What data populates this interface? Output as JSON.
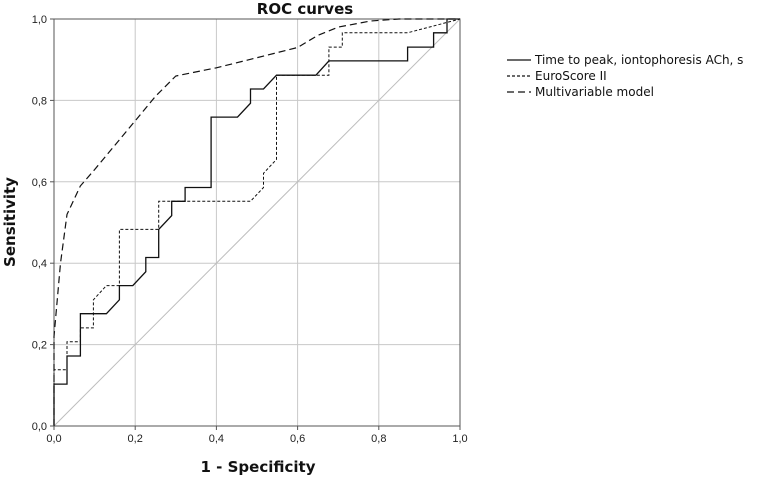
{
  "chart_data": {
    "type": "line",
    "title": "ROC curves",
    "xlabel": "1 - Specificity",
    "ylabel": "Sensitivity",
    "xlim": [
      0,
      1
    ],
    "ylim": [
      0,
      1
    ],
    "x_ticks": [
      "0,0",
      "0,2",
      "0,4",
      "0,6",
      "0,8",
      "1,0"
    ],
    "y_ticks": [
      "0,0",
      "0,2",
      "0,4",
      "0,6",
      "0,8",
      "1,0"
    ],
    "grid": true,
    "legend_position": "right",
    "series": [
      {
        "name": "Time to peak, iontophoresis ACh, s",
        "style": "solid",
        "x": [
          0,
          0,
          0.032,
          0.032,
          0.065,
          0.065,
          0.129,
          0.161,
          0.161,
          0.194,
          0.226,
          0.226,
          0.258,
          0.258,
          0.29,
          0.29,
          0.323,
          0.323,
          0.387,
          0.387,
          0.452,
          0.484,
          0.484,
          0.516,
          0.548,
          0.548,
          0.645,
          0.645,
          0.677,
          0.677,
          0.871,
          0.871,
          0.935,
          0.935,
          0.968,
          0.968,
          1
        ],
        "y": [
          0,
          0.103,
          0.103,
          0.172,
          0.172,
          0.276,
          0.276,
          0.31,
          0.345,
          0.345,
          0.379,
          0.414,
          0.414,
          0.483,
          0.517,
          0.552,
          0.552,
          0.586,
          0.586,
          0.759,
          0.759,
          0.793,
          0.828,
          0.828,
          0.862,
          0.862,
          0.862,
          0.862,
          0.897,
          0.897,
          0.897,
          0.931,
          0.931,
          0.966,
          0.966,
          1,
          1
        ]
      },
      {
        "name": "EuroScore II",
        "style": "dotted",
        "x": [
          0,
          0,
          0.032,
          0.032,
          0.065,
          0.065,
          0.097,
          0.097,
          0.129,
          0.161,
          0.161,
          0.258,
          0.258,
          0.29,
          0.29,
          0.484,
          0.516,
          0.516,
          0.548,
          0.548,
          0.677,
          0.677,
          0.71,
          0.71,
          0.871,
          1
        ],
        "y": [
          0,
          0.138,
          0.138,
          0.207,
          0.207,
          0.241,
          0.241,
          0.31,
          0.345,
          0.345,
          0.483,
          0.483,
          0.552,
          0.552,
          0.552,
          0.552,
          0.586,
          0.621,
          0.655,
          0.862,
          0.862,
          0.931,
          0.931,
          0.966,
          0.966,
          1
        ]
      },
      {
        "name": "Multivariable model",
        "style": "dashed",
        "x": [
          0,
          0,
          0.016,
          0.032,
          0.065,
          0.1,
          0.15,
          0.2,
          0.25,
          0.3,
          0.4,
          0.5,
          0.6,
          0.65,
          0.7,
          0.78,
          0.85,
          1
        ],
        "y": [
          0,
          0.22,
          0.4,
          0.52,
          0.59,
          0.63,
          0.69,
          0.75,
          0.81,
          0.86,
          0.88,
          0.905,
          0.93,
          0.96,
          0.98,
          0.995,
          1,
          1
        ]
      }
    ]
  }
}
